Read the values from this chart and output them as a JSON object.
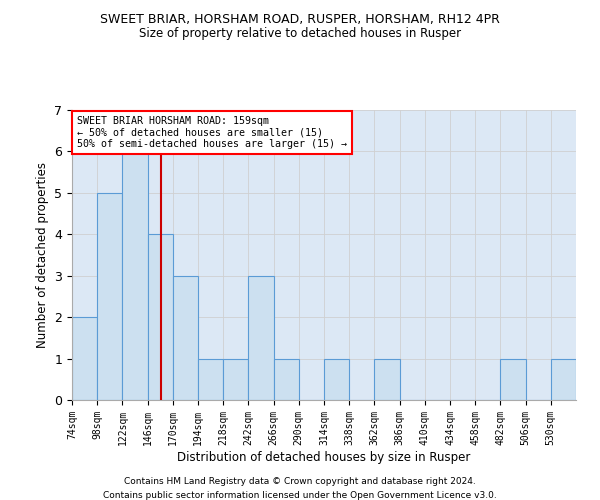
{
  "title1": "SWEET BRIAR, HORSHAM ROAD, RUSPER, HORSHAM, RH12 4PR",
  "title2": "Size of property relative to detached houses in Rusper",
  "xlabel": "Distribution of detached houses by size in Rusper",
  "ylabel": "Number of detached properties",
  "bin_edges": [
    74,
    98,
    122,
    146,
    170,
    194,
    218,
    242,
    266,
    290,
    314,
    338,
    362,
    386,
    410,
    434,
    458,
    482,
    506,
    530,
    554
  ],
  "bar_heights": [
    2,
    5,
    6,
    4,
    3,
    1,
    1,
    3,
    1,
    0,
    1,
    0,
    1,
    0,
    0,
    0,
    0,
    1,
    0,
    1
  ],
  "bar_color": "#cce0f0",
  "bar_edgecolor": "#5b9bd5",
  "bar_linewidth": 0.8,
  "subject_size": 159,
  "red_line_color": "#cc0000",
  "annotation_title": "SWEET BRIAR HORSHAM ROAD: 159sqm",
  "annotation_line1": "← 50% of detached houses are smaller (15)",
  "annotation_line2": "50% of semi-detached houses are larger (15) →",
  "ylim": [
    0,
    7
  ],
  "yticks": [
    0,
    1,
    2,
    3,
    4,
    5,
    6,
    7
  ],
  "footnote1": "Contains HM Land Registry data © Crown copyright and database right 2024.",
  "footnote2": "Contains public sector information licensed under the Open Government Licence v3.0.",
  "grid_color": "#d0d0d0",
  "background_color": "#dce8f5"
}
